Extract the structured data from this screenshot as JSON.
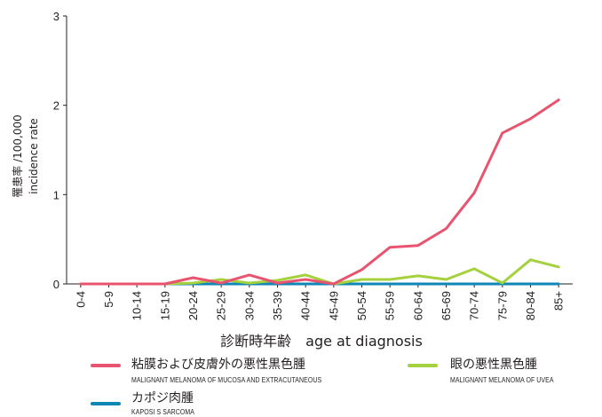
{
  "chart_data": {
    "type": "line",
    "categories": [
      "0-4",
      "5-9",
      "10-14",
      "15-19",
      "20-24",
      "25-29",
      "30-34",
      "35-39",
      "40-44",
      "45-49",
      "50-54",
      "55-59",
      "60-64",
      "65-69",
      "70-74",
      "75-79",
      "80-84",
      "85+"
    ],
    "ylabel_ja": "罹患率 /100,000",
    "ylabel_en": "incidence rate",
    "xlabel": "診断時年齢　age at diagnosis",
    "ylim": [
      0,
      3
    ],
    "yticks": [
      0,
      1,
      2,
      3
    ],
    "grid": false,
    "legend_position": "bottom",
    "series": [
      {
        "name": "粘膜および皮膚外の悪性黒色腫",
        "name_en": "MALIGNANT MELANOMA OF MUCOSA AND EXTRACUTANEOUS",
        "color": "#e8546f",
        "values": [
          0,
          0,
          0,
          0,
          0.07,
          0.01,
          0.1,
          0.01,
          0.05,
          0.0,
          0.16,
          0.41,
          0.43,
          0.62,
          1.02,
          1.69,
          1.85,
          2.06
        ]
      },
      {
        "name": "眼の悪性黒色腫",
        "name_en": "MALIGNANT MELANOMA OF UVEA",
        "color": "#a6d13e",
        "values": [
          0,
          0,
          0,
          0,
          0.01,
          0.05,
          0.01,
          0.04,
          0.1,
          0.0,
          0.05,
          0.05,
          0.09,
          0.05,
          0.17,
          0.01,
          0.27,
          0.19
        ]
      },
      {
        "name": "カポジ肉腫",
        "name_en": "KAPOSI S SARCOMA",
        "color": "#0e87b5",
        "values": [
          0,
          0,
          0,
          0,
          0,
          0,
          0,
          0,
          0,
          0,
          0,
          0,
          0,
          0,
          0,
          0,
          0,
          0
        ]
      }
    ]
  }
}
